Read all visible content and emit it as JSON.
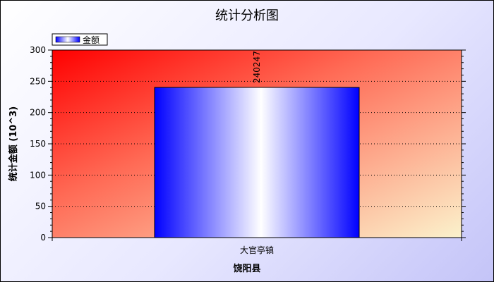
{
  "chart_data": {
    "type": "bar",
    "title": "统计分析图",
    "xlabel": "饶阳县",
    "ylabel": "统计金额 (10^3)",
    "categories": [
      "大官亭镇"
    ],
    "series": [
      {
        "name": "金额",
        "values": [
          240.247
        ],
        "data_labels": [
          "240247"
        ]
      }
    ],
    "ylim": [
      0,
      300
    ],
    "yticks": [
      0,
      50,
      100,
      150,
      200,
      250,
      300
    ],
    "grid": true,
    "legend": "top-left",
    "colors": {
      "plot_bg_start": "#ff0000",
      "plot_bg_end": "#fbf2cc",
      "bar_edge": "#0000ff",
      "bar_center": "#ffffff"
    }
  }
}
